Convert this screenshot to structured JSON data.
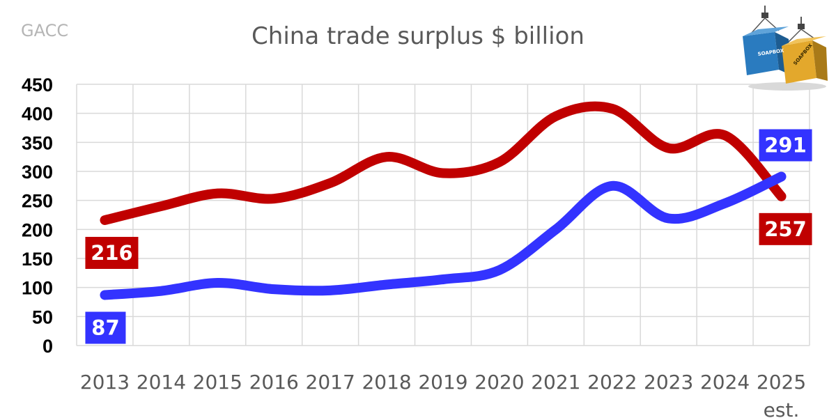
{
  "source": "GACC",
  "chart_data": {
    "type": "line",
    "title": "China trade surplus $ billion",
    "categories": [
      "2013",
      "2014",
      "2015",
      "2016",
      "2017",
      "2018",
      "2019",
      "2020",
      "2021",
      "2022",
      "2023",
      "2024",
      "2025"
    ],
    "category_sublabels": [
      "",
      "",
      "",
      "",
      "",
      "",
      "",
      "",
      "",
      "",
      "",
      "",
      "est."
    ],
    "ylim": [
      0,
      450
    ],
    "yticks": [
      0,
      50,
      100,
      150,
      200,
      250,
      300,
      350,
      400,
      450
    ],
    "grid": true,
    "series": [
      {
        "color": "#c00000",
        "values": [
          216,
          240,
          262,
          253,
          280,
          325,
          297,
          316,
          395,
          408,
          340,
          362,
          257
        ],
        "data_labels": [
          {
            "index": 0,
            "text": "216"
          },
          {
            "index": 12,
            "text": "257"
          }
        ]
      },
      {
        "color": "#3333ff",
        "values": [
          87,
          94,
          108,
          97,
          95,
          105,
          114,
          130,
          200,
          275,
          219,
          245,
          291
        ],
        "data_labels": [
          {
            "index": 0,
            "text": "87"
          },
          {
            "index": 12,
            "text": "291"
          }
        ]
      }
    ]
  },
  "logo": {
    "icon": "shipping-containers-logo",
    "text": "SOAPBOX",
    "colors": [
      "#2a7bbf",
      "#e3a82c"
    ]
  }
}
